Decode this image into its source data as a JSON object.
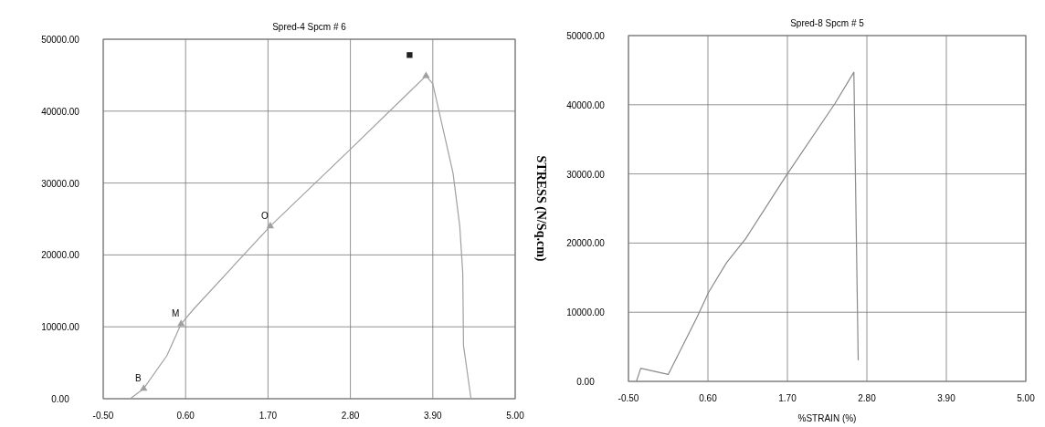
{
  "chart_data": [
    {
      "type": "line",
      "title": "Spred-4   Spcm # 6",
      "xlim": [
        -0.5,
        5
      ],
      "ylim": [
        0,
        50000
      ],
      "xticks": [
        {
          "value": -0.5,
          "label": "-0.50"
        },
        {
          "value": 0.6,
          "label": "0.60"
        },
        {
          "value": 1.7,
          "label": "1.70"
        },
        {
          "value": 2.8,
          "label": "2.80"
        },
        {
          "value": 3.9,
          "label": "3.90"
        },
        {
          "value": 5,
          "label": "5.00"
        }
      ],
      "yticks": [
        {
          "value": 0,
          "label": "0.00"
        },
        {
          "value": 10000,
          "label": "10000.00"
        },
        {
          "value": 20000,
          "label": "20000.00"
        },
        {
          "value": 30000,
          "label": "30000.00"
        },
        {
          "value": 40000,
          "label": "40000.00"
        },
        {
          "value": 50000,
          "label": "50000.00"
        }
      ],
      "grid": true,
      "series": [
        {
          "color": "#a0a0a0",
          "marker": "none",
          "x": [
            -0.14,
            0.04,
            0.35,
            0.54,
            0.71,
            1.73,
            2.79,
            3.61,
            3.81,
            3.9,
            4.17,
            4.26,
            4.3,
            4.31,
            4.41
          ],
          "values": [
            0,
            1400,
            6000,
            10400,
            12500,
            24000,
            34600,
            42900,
            44900,
            43800,
            31400,
            24000,
            17500,
            7400,
            0
          ]
        },
        {
          "type": "scatter",
          "color": "#a0a0a0",
          "marker": "triangle",
          "x": [
            0.04,
            0.54,
            1.73,
            3.81
          ],
          "values": [
            1400,
            10400,
            24000,
            44900
          ]
        },
        {
          "type": "scatter",
          "color": "#222222",
          "marker": "square",
          "x": [
            3.59
          ],
          "values": [
            47800
          ]
        }
      ],
      "annotations": [
        {
          "text": "B",
          "x": 0.04,
          "y": 1400
        },
        {
          "text": "M",
          "x": 0.54,
          "y": 10400
        },
        {
          "text": "O",
          "x": 1.73,
          "y": 24000
        }
      ]
    },
    {
      "type": "line",
      "title": "Spred-8   Spcm # 5",
      "xlabel": "%STRAIN  (%)",
      "ylabel": "STRESS  (N/Sq.cm)",
      "xlim": [
        -0.5,
        5
      ],
      "ylim": [
        0,
        50000
      ],
      "xticks": [
        {
          "value": -0.5,
          "label": "-0.50"
        },
        {
          "value": 0.6,
          "label": "0.60"
        },
        {
          "value": 1.7,
          "label": "1.70"
        },
        {
          "value": 2.8,
          "label": "2.80"
        },
        {
          "value": 3.9,
          "label": "3.90"
        },
        {
          "value": 5,
          "label": "5.00"
        }
      ],
      "yticks": [
        {
          "value": 0,
          "label": "0.00"
        },
        {
          "value": 10000,
          "label": "10000.00"
        },
        {
          "value": 20000,
          "label": "20000.00"
        },
        {
          "value": 30000,
          "label": "30000.00"
        },
        {
          "value": 40000,
          "label": "40000.00"
        },
        {
          "value": 50000,
          "label": "50000.00"
        }
      ],
      "grid": true,
      "series": [
        {
          "color": "#8a8a8a",
          "marker": "none",
          "x": [
            -0.39,
            -0.33,
            0.05,
            0.45,
            0.61,
            0.86,
            1.12,
            1.68,
            2.36,
            2.62,
            2.68
          ],
          "values": [
            0,
            1900,
            1000,
            9300,
            12900,
            17200,
            20600,
            29700,
            40200,
            44700,
            3100
          ]
        }
      ]
    }
  ]
}
